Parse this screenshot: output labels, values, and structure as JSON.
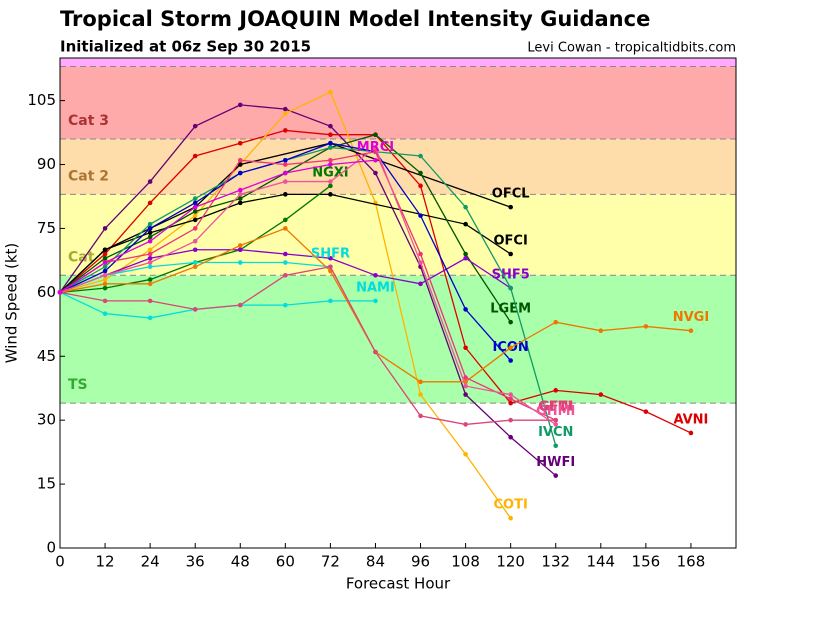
{
  "chart_data": {
    "type": "line",
    "title": "Tropical Storm JOAQUIN Model Intensity Guidance",
    "subtitle": "Initialized at 06z Sep 30 2015",
    "credit": "Levi Cowan - tropicaltidbits.com",
    "xlabel": "Forecast Hour",
    "ylabel": "Wind Speed (kt)",
    "xlim": [
      0,
      180
    ],
    "ylim": [
      0,
      115
    ],
    "xticks": [
      0,
      12,
      24,
      36,
      48,
      60,
      72,
      84,
      96,
      108,
      120,
      132,
      144,
      156,
      168
    ],
    "yticks": [
      0,
      15,
      30,
      45,
      60,
      75,
      90,
      105
    ],
    "bands": [
      {
        "name": "TS",
        "from": 34,
        "to": 64,
        "color": "#aaffaa",
        "label_color": "#33aa33"
      },
      {
        "name": "Cat 1",
        "from": 64,
        "to": 83,
        "color": "#ffffaa",
        "label_color": "#aaaa33"
      },
      {
        "name": "Cat 2",
        "from": 83,
        "to": 96,
        "color": "#ffddaa",
        "label_color": "#aa7733"
      },
      {
        "name": "Cat 3",
        "from": 96,
        "to": 113,
        "color": "#ffaaaa",
        "label_color": "#aa3333"
      },
      {
        "from": 113,
        "to": 115,
        "color": "#ffaaff"
      }
    ],
    "series": [
      {
        "name": "HWFI",
        "color": "#660077",
        "x": [
          0,
          12,
          24,
          36,
          48,
          60,
          72,
          84,
          96,
          108,
          120,
          132
        ],
        "values": [
          60,
          75,
          86,
          99,
          104,
          103,
          99,
          88,
          66,
          36,
          26,
          17
        ]
      },
      {
        "name": "AVNI",
        "color": "#dd0000",
        "x": [
          0,
          12,
          24,
          36,
          48,
          60,
          72,
          84,
          96,
          108,
          120,
          132,
          144,
          156,
          168
        ],
        "values": [
          60,
          69,
          81,
          92,
          95,
          98,
          97,
          97,
          85,
          47,
          34,
          37,
          36,
          32,
          27
        ]
      },
      {
        "name": "COTI",
        "color": "#ffb300",
        "x": [
          0,
          12,
          24,
          36,
          48,
          60,
          72,
          84,
          96,
          108,
          120
        ],
        "values": [
          60,
          63,
          70,
          78,
          90,
          102,
          107,
          81,
          36,
          22,
          7
        ]
      },
      {
        "name": "OFCL",
        "color": "#000000",
        "x": [
          0,
          12,
          24,
          36,
          48,
          72,
          120
        ],
        "values": [
          60,
          70,
          75,
          80,
          90,
          95,
          80
        ]
      },
      {
        "name": "OFCI",
        "color": "#000000",
        "x": [
          0,
          12,
          24,
          36,
          48,
          60,
          72,
          108,
          120
        ],
        "values": [
          60,
          70,
          74,
          77,
          81,
          83,
          83,
          76,
          69
        ]
      },
      {
        "name": "LGEM",
        "color": "#005500",
        "x": [
          0,
          12,
          24,
          36,
          48,
          60,
          72,
          84,
          96,
          108,
          120
        ],
        "values": [
          60,
          68,
          73,
          79,
          82,
          88,
          94,
          97,
          88,
          69,
          53
        ]
      },
      {
        "name": "NGXI",
        "color": "#007700",
        "x": [
          0,
          12,
          24,
          36,
          48,
          60,
          72
        ],
        "values": [
          60,
          61,
          63,
          67,
          70,
          77,
          85
        ]
      },
      {
        "name": "SHF5",
        "color": "#8800cc",
        "x": [
          0,
          12,
          24,
          36,
          48,
          60,
          72,
          84,
          96,
          108,
          120
        ],
        "values": [
          60,
          64,
          68,
          70,
          70,
          69,
          68,
          64,
          62,
          68,
          61
        ]
      },
      {
        "name": "SHFR",
        "color": "#00dddd",
        "x": [
          0,
          12,
          24,
          36,
          48,
          60,
          72
        ],
        "values": [
          60,
          64,
          66,
          67,
          67,
          67,
          66
        ]
      },
      {
        "name": "NAMI",
        "color": "#00dddd",
        "x": [
          0,
          12,
          24,
          36,
          48,
          60,
          72,
          84
        ],
        "values": [
          60,
          55,
          54,
          56,
          57,
          57,
          58,
          58
        ]
      },
      {
        "name": "IVCN",
        "color": "#119966",
        "x": [
          0,
          12,
          24,
          36,
          48,
          60,
          72,
          84,
          96,
          108,
          120,
          132
        ],
        "values": [
          60,
          66,
          76,
          82,
          88,
          91,
          94,
          93,
          92,
          80,
          61,
          24
        ]
      },
      {
        "name": "ICON",
        "color": "#0000cc",
        "x": [
          0,
          12,
          24,
          36,
          48,
          60,
          72,
          84,
          96,
          108,
          120
        ],
        "values": [
          60,
          65,
          75,
          81,
          88,
          91,
          95,
          93,
          78,
          56,
          44
        ]
      },
      {
        "name": "NVGI",
        "color": "#ee7700",
        "x": [
          0,
          12,
          24,
          36,
          48,
          60,
          72,
          84,
          96,
          108,
          120,
          132,
          144,
          156,
          168
        ],
        "values": [
          60,
          62,
          62,
          66,
          71,
          75,
          65,
          46,
          39,
          39,
          47,
          53,
          51,
          52,
          51
        ]
      },
      {
        "name": "GFDI",
        "color": "#ee3377",
        "x": [
          0,
          12,
          24,
          36,
          48,
          60,
          72,
          84,
          96,
          108,
          120,
          132
        ],
        "values": [
          60,
          67,
          69,
          75,
          91,
          90,
          91,
          93,
          69,
          40,
          35,
          30
        ]
      },
      {
        "name": "GHMI",
        "color": "#ee5599",
        "x": [
          0,
          12,
          24,
          36,
          48,
          60,
          72,
          84,
          96,
          108,
          120,
          132
        ],
        "values": [
          60,
          64,
          67,
          72,
          83,
          86,
          86,
          94,
          67,
          38,
          36,
          29
        ]
      },
      {
        "name": "GFTI",
        "color": "#dd4477",
        "x": [
          0,
          12,
          24,
          36,
          48,
          60,
          72,
          84,
          96,
          108,
          120,
          132
        ],
        "values": [
          60,
          58,
          58,
          56,
          57,
          64,
          66,
          46,
          31,
          29,
          30,
          30
        ]
      },
      {
        "name": "MRCI",
        "color": "#dd00dd",
        "x": [
          0,
          12,
          24,
          36,
          48,
          60,
          72,
          84
        ],
        "values": [
          60,
          67,
          72,
          80,
          84,
          88,
          90,
          91
        ]
      }
    ]
  }
}
